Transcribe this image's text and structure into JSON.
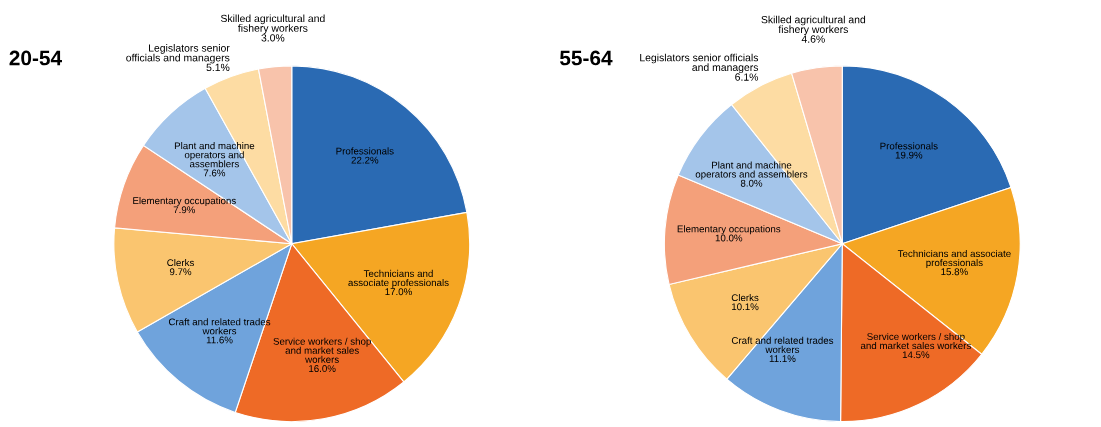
{
  "chart_data": [
    {
      "type": "pie",
      "title": "20-54",
      "categories": [
        "Professionals",
        "Technicians and\nassociate professionals",
        "Service workers / shop\nand market sales\nworkers",
        "Craft and related trades\nworkers",
        "Clerks",
        "Elementary occupations",
        "Plant and machine\noperators and\nassemblers",
        "Legislators senior\nofficials and managers",
        "Skilled agricultural and\nfishery workers"
      ],
      "values": [
        22.2,
        17.0,
        16.0,
        11.6,
        9.7,
        7.9,
        7.6,
        5.1,
        3.0
      ],
      "value_labels": [
        "22.2%",
        "17.0%",
        "16.0%",
        "11.6%",
        "9.7%",
        "7.9%",
        "7.6%",
        "5.1%",
        "3.0%"
      ],
      "colors": [
        "#2a6ab3",
        "#f5a623",
        "#ee6a26",
        "#6fa3dc",
        "#fac56f",
        "#f4a07a",
        "#a4c5ea",
        "#fddca3",
        "#f8c3ab"
      ]
    },
    {
      "type": "pie",
      "title": "55-64",
      "categories": [
        "Professionals",
        "Technicians and associate\nprofessionals",
        "Service workers / shop\nand market sales workers",
        "Craft and related trades\nworkers",
        "Clerks",
        "Elementary occupations",
        "Plant and machine\noperators and assemblers",
        "Legislators senior officials\nand managers",
        "Skilled agricultural and\nfishery workers"
      ],
      "values": [
        19.9,
        15.8,
        14.5,
        11.1,
        10.1,
        10.0,
        8.0,
        6.1,
        4.6
      ],
      "value_labels": [
        "19.9%",
        "15.8%",
        "14.5%",
        "11.1%",
        "10.1%",
        "10.0%",
        "8.0%",
        "6.1%",
        "4.6%"
      ],
      "colors": [
        "#2a6ab3",
        "#f5a623",
        "#ee6a26",
        "#6fa3dc",
        "#fac56f",
        "#f4a07a",
        "#a4c5ea",
        "#fddca3",
        "#f8c3ab"
      ]
    }
  ]
}
